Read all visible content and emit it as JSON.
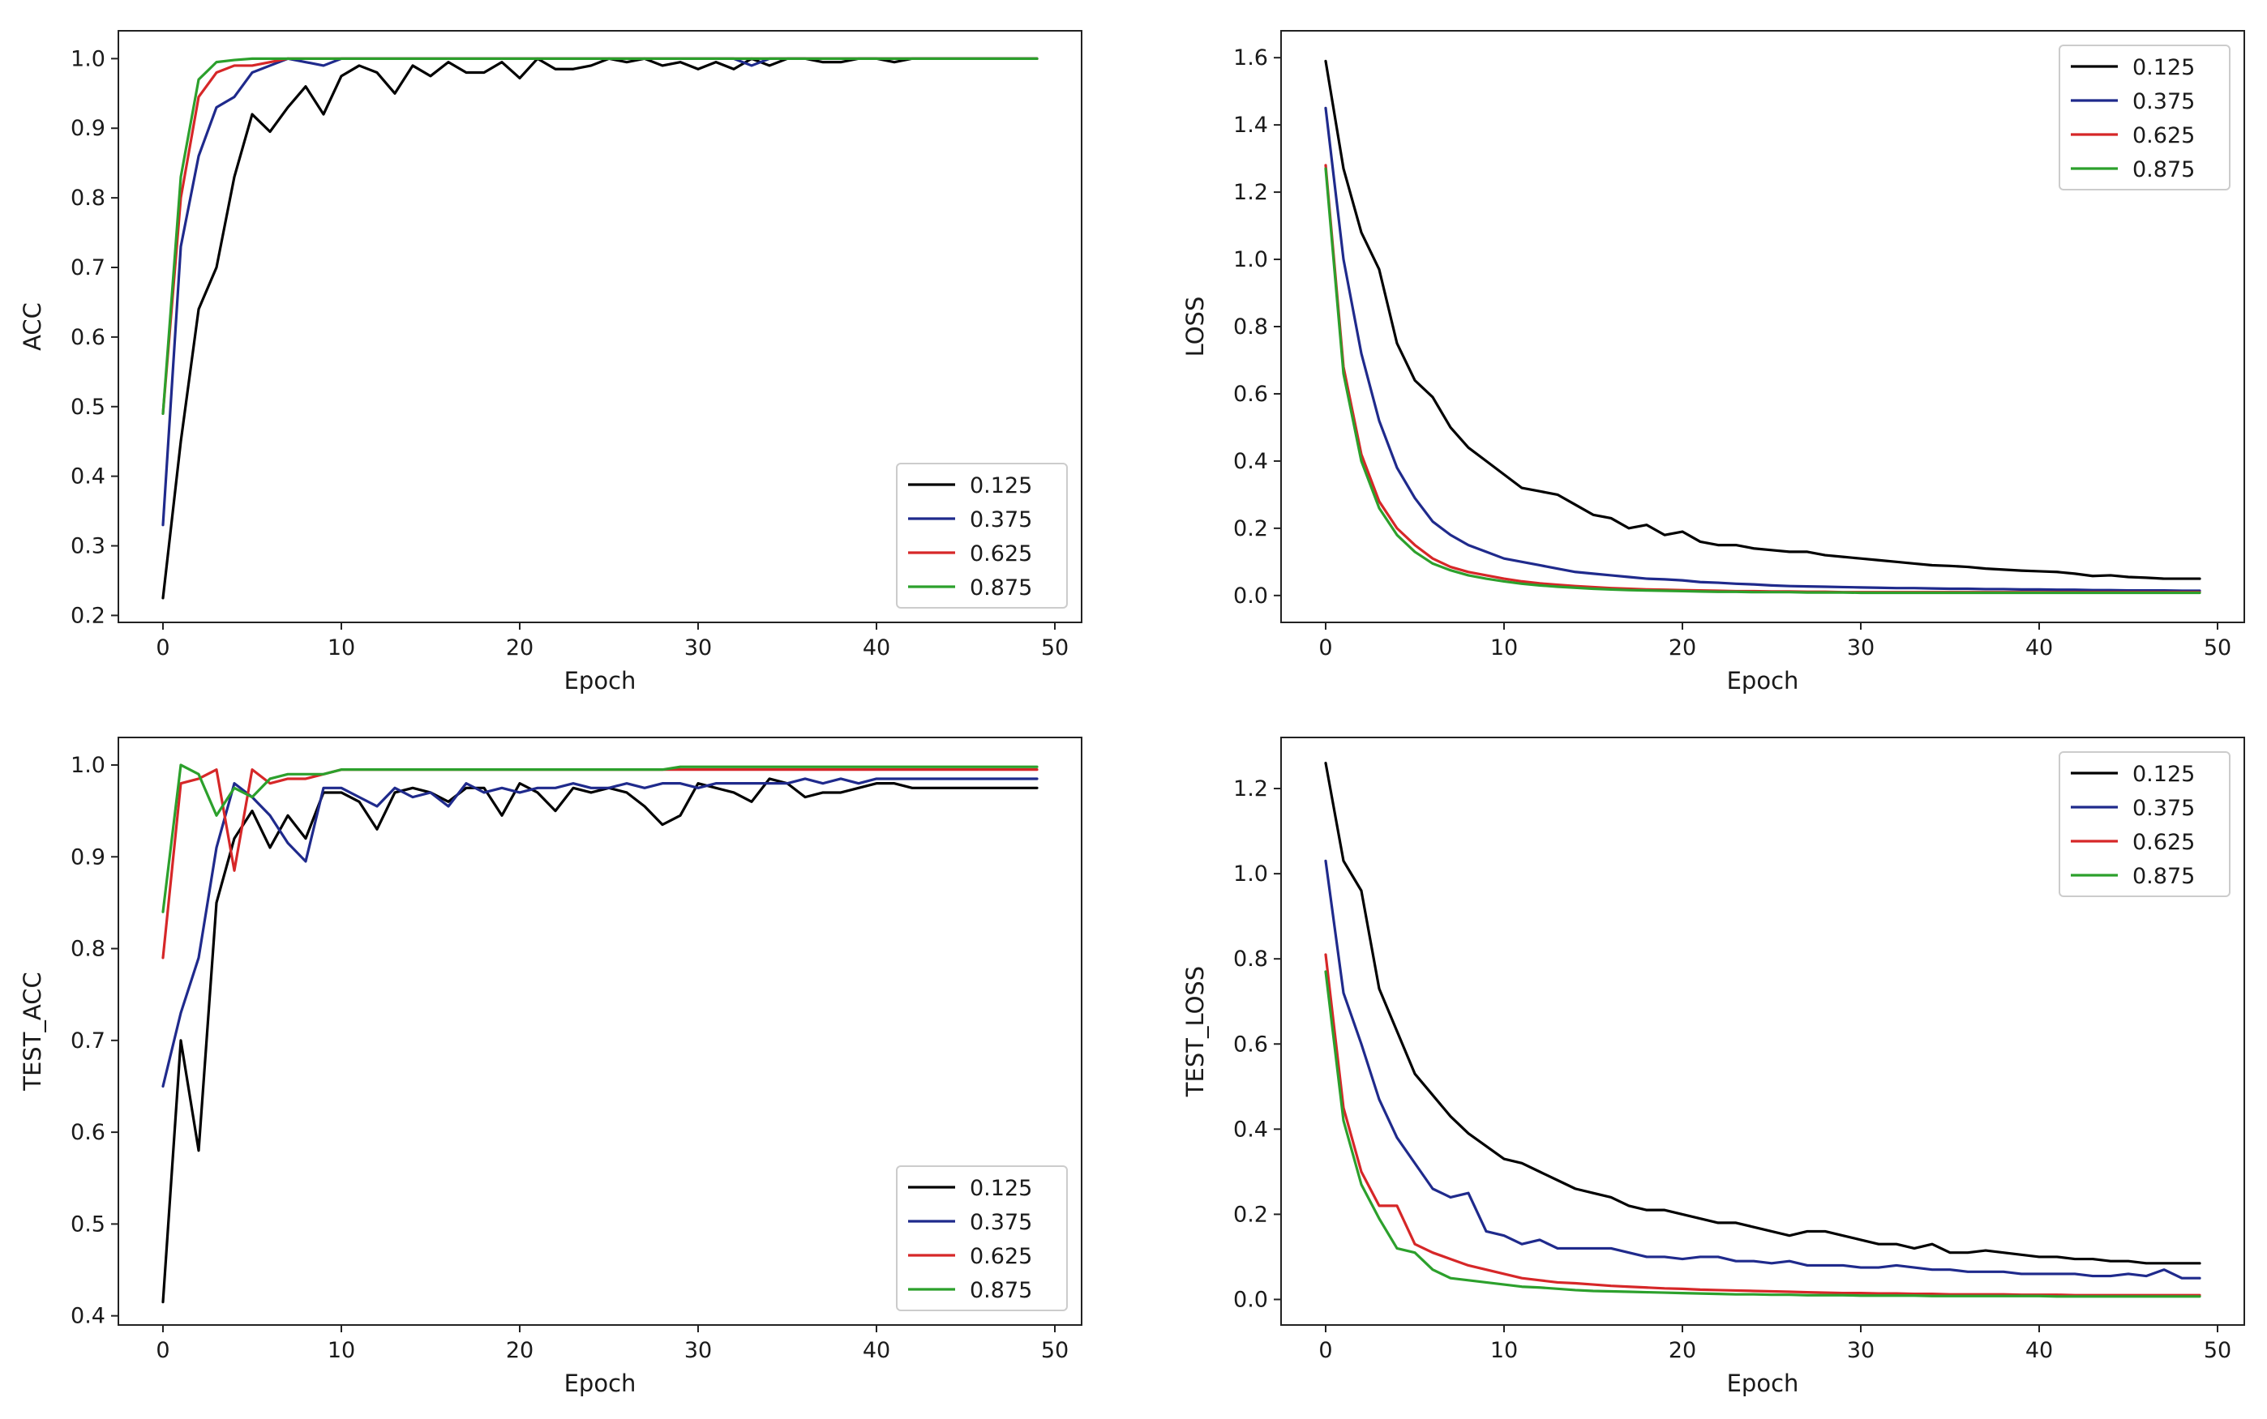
{
  "chart_data": [
    {
      "type": "line",
      "title": "",
      "xlabel": "Epoch",
      "ylabel": "ACC",
      "xlim": [
        -2.5,
        51.5
      ],
      "ylim": [
        0.19,
        1.04
      ],
      "xticks": [
        0,
        10,
        20,
        30,
        40,
        50
      ],
      "yticks": [
        0.2,
        0.3,
        0.4,
        0.5,
        0.6,
        0.7,
        0.8,
        0.9,
        1.0
      ],
      "ytick_labels": [
        "0.2",
        "0.3",
        "0.4",
        "0.5",
        "0.6",
        "0.7",
        "0.8",
        "0.9",
        "1.0"
      ],
      "legend_position": "lower-right",
      "series": [
        {
          "name": "0.125",
          "color": "#000000",
          "values": [
            0.225,
            0.45,
            0.64,
            0.7,
            0.83,
            0.92,
            0.895,
            0.93,
            0.96,
            0.92,
            0.975,
            0.99,
            0.98,
            0.95,
            0.99,
            0.975,
            0.995,
            0.98,
            0.98,
            0.995,
            0.972,
            1.0,
            0.985,
            0.985,
            0.99,
            1.0,
            0.995,
            1.0,
            0.99,
            0.995,
            0.985,
            0.995,
            0.985,
            1.0,
            0.99,
            1.0,
            1.0,
            0.995,
            0.995,
            1.0,
            1.0,
            0.995,
            1.0,
            1.0,
            1.0,
            1.0,
            1.0,
            1.0,
            1.0,
            1.0
          ]
        },
        {
          "name": "0.375",
          "color": "#1f2a8c",
          "values": [
            0.33,
            0.73,
            0.86,
            0.93,
            0.945,
            0.98,
            0.99,
            1.0,
            0.995,
            0.99,
            1.0,
            1.0,
            1.0,
            1.0,
            1.0,
            1.0,
            1.0,
            1.0,
            1.0,
            1.0,
            1.0,
            1.0,
            1.0,
            1.0,
            1.0,
            1.0,
            1.0,
            1.0,
            1.0,
            1.0,
            1.0,
            1.0,
            1.0,
            0.99,
            1.0,
            1.0,
            1.0,
            1.0,
            1.0,
            1.0,
            1.0,
            1.0,
            1.0,
            1.0,
            1.0,
            1.0,
            1.0,
            1.0,
            1.0,
            1.0
          ]
        },
        {
          "name": "0.625",
          "color": "#d62728",
          "values": [
            0.49,
            0.8,
            0.945,
            0.98,
            0.99,
            0.99,
            0.995,
            1.0,
            1.0,
            1.0,
            1.0,
            1.0,
            1.0,
            1.0,
            1.0,
            1.0,
            1.0,
            1.0,
            1.0,
            1.0,
            1.0,
            1.0,
            1.0,
            1.0,
            1.0,
            1.0,
            1.0,
            1.0,
            1.0,
            1.0,
            1.0,
            1.0,
            1.0,
            1.0,
            1.0,
            1.0,
            1.0,
            1.0,
            1.0,
            1.0,
            1.0,
            1.0,
            1.0,
            1.0,
            1.0,
            1.0,
            1.0,
            1.0,
            1.0,
            1.0
          ]
        },
        {
          "name": "0.875",
          "color": "#2ca02c",
          "values": [
            0.49,
            0.83,
            0.97,
            0.995,
            0.998,
            1.0,
            1.0,
            1.0,
            1.0,
            1.0,
            1.0,
            1.0,
            1.0,
            1.0,
            1.0,
            1.0,
            1.0,
            1.0,
            1.0,
            1.0,
            1.0,
            1.0,
            1.0,
            1.0,
            1.0,
            1.0,
            1.0,
            1.0,
            1.0,
            1.0,
            1.0,
            1.0,
            1.0,
            1.0,
            1.0,
            1.0,
            1.0,
            1.0,
            1.0,
            1.0,
            1.0,
            1.0,
            1.0,
            1.0,
            1.0,
            1.0,
            1.0,
            1.0,
            1.0,
            1.0
          ]
        }
      ]
    },
    {
      "type": "line",
      "title": "",
      "xlabel": "Epoch",
      "ylabel": "LOSS",
      "xlim": [
        -2.5,
        51.5
      ],
      "ylim": [
        -0.08,
        1.68
      ],
      "xticks": [
        0,
        10,
        20,
        30,
        40,
        50
      ],
      "yticks": [
        0.0,
        0.2,
        0.4,
        0.6,
        0.8,
        1.0,
        1.2,
        1.4,
        1.6
      ],
      "ytick_labels": [
        "0.0",
        "0.2",
        "0.4",
        "0.6",
        "0.8",
        "1.0",
        "1.2",
        "1.4",
        "1.6"
      ],
      "legend_position": "upper-right",
      "series": [
        {
          "name": "0.125",
          "color": "#000000",
          "values": [
            1.59,
            1.27,
            1.08,
            0.97,
            0.75,
            0.64,
            0.59,
            0.5,
            0.44,
            0.4,
            0.36,
            0.32,
            0.31,
            0.3,
            0.27,
            0.24,
            0.23,
            0.2,
            0.21,
            0.18,
            0.19,
            0.16,
            0.15,
            0.15,
            0.14,
            0.135,
            0.13,
            0.13,
            0.12,
            0.115,
            0.11,
            0.105,
            0.1,
            0.095,
            0.09,
            0.088,
            0.085,
            0.08,
            0.077,
            0.074,
            0.072,
            0.07,
            0.065,
            0.058,
            0.06,
            0.055,
            0.053,
            0.05,
            0.05,
            0.05
          ]
        },
        {
          "name": "0.375",
          "color": "#1f2a8c",
          "values": [
            1.45,
            1.0,
            0.72,
            0.52,
            0.38,
            0.29,
            0.22,
            0.18,
            0.15,
            0.13,
            0.11,
            0.1,
            0.09,
            0.08,
            0.07,
            0.065,
            0.06,
            0.055,
            0.05,
            0.048,
            0.045,
            0.04,
            0.038,
            0.035,
            0.033,
            0.03,
            0.028,
            0.027,
            0.026,
            0.025,
            0.024,
            0.023,
            0.022,
            0.022,
            0.021,
            0.02,
            0.02,
            0.019,
            0.019,
            0.018,
            0.018,
            0.017,
            0.017,
            0.016,
            0.016,
            0.015,
            0.015,
            0.015,
            0.014,
            0.014
          ]
        },
        {
          "name": "0.625",
          "color": "#d62728",
          "values": [
            1.28,
            0.68,
            0.42,
            0.28,
            0.2,
            0.15,
            0.11,
            0.085,
            0.07,
            0.06,
            0.05,
            0.042,
            0.036,
            0.032,
            0.028,
            0.025,
            0.022,
            0.02,
            0.018,
            0.017,
            0.016,
            0.015,
            0.014,
            0.013,
            0.013,
            0.012,
            0.012,
            0.011,
            0.011,
            0.01,
            0.01,
            0.01,
            0.01,
            0.01,
            0.01,
            0.01,
            0.01,
            0.01,
            0.01,
            0.01,
            0.01,
            0.01,
            0.01,
            0.01,
            0.01,
            0.01,
            0.01,
            0.01,
            0.01,
            0.01
          ]
        },
        {
          "name": "0.875",
          "color": "#2ca02c",
          "values": [
            1.27,
            0.66,
            0.4,
            0.26,
            0.18,
            0.13,
            0.095,
            0.075,
            0.06,
            0.05,
            0.042,
            0.035,
            0.03,
            0.026,
            0.023,
            0.02,
            0.018,
            0.016,
            0.015,
            0.014,
            0.013,
            0.012,
            0.011,
            0.011,
            0.01,
            0.01,
            0.01,
            0.009,
            0.009,
            0.009,
            0.008,
            0.008,
            0.008,
            0.008,
            0.008,
            0.008,
            0.008,
            0.008,
            0.008,
            0.008,
            0.008,
            0.008,
            0.008,
            0.008,
            0.008,
            0.008,
            0.008,
            0.008,
            0.008,
            0.008
          ]
        }
      ]
    },
    {
      "type": "line",
      "title": "",
      "xlabel": "Epoch",
      "ylabel": "TEST_ACC",
      "xlim": [
        -2.5,
        51.5
      ],
      "ylim": [
        0.39,
        1.03
      ],
      "xticks": [
        0,
        10,
        20,
        30,
        40,
        50
      ],
      "yticks": [
        0.4,
        0.5,
        0.6,
        0.7,
        0.8,
        0.9,
        1.0
      ],
      "ytick_labels": [
        "0.4",
        "0.5",
        "0.6",
        "0.7",
        "0.8",
        "0.9",
        "1.0"
      ],
      "legend_position": "lower-right",
      "series": [
        {
          "name": "0.125",
          "color": "#000000",
          "values": [
            0.415,
            0.7,
            0.58,
            0.85,
            0.92,
            0.95,
            0.91,
            0.945,
            0.92,
            0.97,
            0.97,
            0.96,
            0.93,
            0.97,
            0.975,
            0.97,
            0.96,
            0.975,
            0.975,
            0.945,
            0.98,
            0.97,
            0.95,
            0.975,
            0.97,
            0.975,
            0.97,
            0.955,
            0.935,
            0.945,
            0.98,
            0.975,
            0.97,
            0.96,
            0.985,
            0.98,
            0.965,
            0.97,
            0.97,
            0.975,
            0.98,
            0.98,
            0.975,
            0.975,
            0.975,
            0.975,
            0.975,
            0.975,
            0.975,
            0.975
          ]
        },
        {
          "name": "0.375",
          "color": "#1f2a8c",
          "values": [
            0.65,
            0.73,
            0.79,
            0.91,
            0.98,
            0.965,
            0.945,
            0.915,
            0.895,
            0.975,
            0.975,
            0.965,
            0.955,
            0.975,
            0.965,
            0.97,
            0.955,
            0.98,
            0.97,
            0.975,
            0.97,
            0.975,
            0.975,
            0.98,
            0.975,
            0.975,
            0.98,
            0.975,
            0.98,
            0.98,
            0.975,
            0.98,
            0.98,
            0.98,
            0.98,
            0.98,
            0.985,
            0.98,
            0.985,
            0.98,
            0.985,
            0.985,
            0.985,
            0.985,
            0.985,
            0.985,
            0.985,
            0.985,
            0.985,
            0.985
          ]
        },
        {
          "name": "0.625",
          "color": "#d62728",
          "values": [
            0.79,
            0.98,
            0.985,
            0.995,
            0.885,
            0.995,
            0.98,
            0.985,
            0.985,
            0.99,
            0.995,
            0.995,
            0.995,
            0.995,
            0.995,
            0.995,
            0.995,
            0.995,
            0.995,
            0.995,
            0.995,
            0.995,
            0.995,
            0.995,
            0.995,
            0.995,
            0.995,
            0.995,
            0.995,
            0.995,
            0.995,
            0.995,
            0.995,
            0.995,
            0.995,
            0.995,
            0.995,
            0.995,
            0.995,
            0.995,
            0.995,
            0.995,
            0.995,
            0.995,
            0.995,
            0.995,
            0.995,
            0.995,
            0.995,
            0.995
          ]
        },
        {
          "name": "0.875",
          "color": "#2ca02c",
          "values": [
            0.84,
            1.0,
            0.99,
            0.945,
            0.975,
            0.965,
            0.985,
            0.99,
            0.99,
            0.99,
            0.995,
            0.995,
            0.995,
            0.995,
            0.995,
            0.995,
            0.995,
            0.995,
            0.995,
            0.995,
            0.995,
            0.995,
            0.995,
            0.995,
            0.995,
            0.995,
            0.995,
            0.995,
            0.995,
            0.998,
            0.998,
            0.998,
            0.998,
            0.998,
            0.998,
            0.998,
            0.998,
            0.998,
            0.998,
            0.998,
            0.998,
            0.998,
            0.998,
            0.998,
            0.998,
            0.998,
            0.998,
            0.998,
            0.998,
            0.998
          ]
        }
      ]
    },
    {
      "type": "line",
      "title": "",
      "xlabel": "Epoch",
      "ylabel": "TEST_LOSS",
      "xlim": [
        -2.5,
        51.5
      ],
      "ylim": [
        -0.06,
        1.32
      ],
      "xticks": [
        0,
        10,
        20,
        30,
        40,
        50
      ],
      "yticks": [
        0.0,
        0.2,
        0.4,
        0.6,
        0.8,
        1.0,
        1.2
      ],
      "ytick_labels": [
        "0.0",
        "0.2",
        "0.4",
        "0.6",
        "0.8",
        "1.0",
        "1.2"
      ],
      "legend_position": "upper-right",
      "series": [
        {
          "name": "0.125",
          "color": "#000000",
          "values": [
            1.26,
            1.03,
            0.96,
            0.73,
            0.63,
            0.53,
            0.48,
            0.43,
            0.39,
            0.36,
            0.33,
            0.32,
            0.3,
            0.28,
            0.26,
            0.25,
            0.24,
            0.22,
            0.21,
            0.21,
            0.2,
            0.19,
            0.18,
            0.18,
            0.17,
            0.16,
            0.15,
            0.16,
            0.16,
            0.15,
            0.14,
            0.13,
            0.13,
            0.12,
            0.13,
            0.11,
            0.11,
            0.115,
            0.11,
            0.105,
            0.1,
            0.1,
            0.095,
            0.095,
            0.09,
            0.09,
            0.085,
            0.085,
            0.085,
            0.085
          ]
        },
        {
          "name": "0.375",
          "color": "#1f2a8c",
          "values": [
            1.03,
            0.72,
            0.6,
            0.47,
            0.38,
            0.32,
            0.26,
            0.24,
            0.25,
            0.16,
            0.15,
            0.13,
            0.14,
            0.12,
            0.12,
            0.12,
            0.12,
            0.11,
            0.1,
            0.1,
            0.095,
            0.1,
            0.1,
            0.09,
            0.09,
            0.085,
            0.09,
            0.08,
            0.08,
            0.08,
            0.075,
            0.075,
            0.08,
            0.075,
            0.07,
            0.07,
            0.065,
            0.065,
            0.065,
            0.06,
            0.06,
            0.06,
            0.06,
            0.055,
            0.055,
            0.06,
            0.055,
            0.07,
            0.05,
            0.05
          ]
        },
        {
          "name": "0.625",
          "color": "#d62728",
          "values": [
            0.81,
            0.45,
            0.3,
            0.22,
            0.22,
            0.13,
            0.11,
            0.095,
            0.08,
            0.07,
            0.06,
            0.05,
            0.045,
            0.04,
            0.038,
            0.035,
            0.032,
            0.03,
            0.028,
            0.026,
            0.025,
            0.023,
            0.022,
            0.021,
            0.02,
            0.019,
            0.018,
            0.017,
            0.016,
            0.015,
            0.015,
            0.014,
            0.014,
            0.013,
            0.013,
            0.012,
            0.012,
            0.012,
            0.012,
            0.011,
            0.011,
            0.011,
            0.01,
            0.01,
            0.01,
            0.01,
            0.01,
            0.01,
            0.01,
            0.01
          ]
        },
        {
          "name": "0.875",
          "color": "#2ca02c",
          "values": [
            0.77,
            0.42,
            0.27,
            0.19,
            0.12,
            0.11,
            0.07,
            0.05,
            0.045,
            0.04,
            0.035,
            0.03,
            0.028,
            0.025,
            0.022,
            0.02,
            0.019,
            0.018,
            0.017,
            0.016,
            0.015,
            0.014,
            0.013,
            0.012,
            0.012,
            0.011,
            0.011,
            0.01,
            0.01,
            0.01,
            0.009,
            0.009,
            0.009,
            0.009,
            0.008,
            0.008,
            0.008,
            0.008,
            0.008,
            0.008,
            0.008,
            0.007,
            0.007,
            0.007,
            0.007,
            0.007,
            0.007,
            0.007,
            0.007,
            0.007
          ]
        }
      ]
    }
  ]
}
